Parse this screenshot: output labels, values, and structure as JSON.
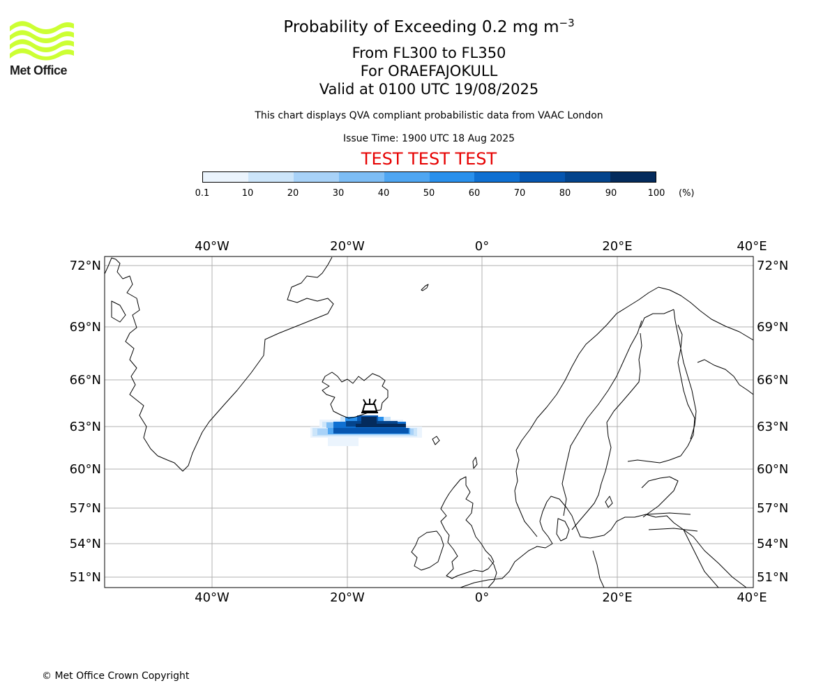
{
  "header": {
    "title_main": "Probability of Exceeding 0.2 mg m",
    "title_exp": "−3",
    "level_range": "From FL300 to FL350",
    "volcano": "For ORAEFAJOKULL",
    "valid_time": "Valid at 0100 UTC 19/08/2025",
    "disclaimer": "This chart displays QVA compliant probabilistic data from VAAC London",
    "issue_time": "Issue Time: 1900 UTC 18 Aug 2025",
    "test_banner": "TEST TEST TEST"
  },
  "logo": {
    "text": "Met Office",
    "color": "#ccff33"
  },
  "colorbar": {
    "ticks": [
      "0.1",
      "10",
      "20",
      "30",
      "40",
      "50",
      "60",
      "70",
      "80",
      "90",
      "100"
    ],
    "unit": "(%)",
    "colors": [
      "#ebf4fd",
      "#cce5fa",
      "#a8d2f8",
      "#7dbdf5",
      "#4fa6f2",
      "#2990ec",
      "#0f70d2",
      "#0656b0",
      "#04448c",
      "#042b5c"
    ]
  },
  "map": {
    "lon_labels": [
      "40°W",
      "20°W",
      "0°",
      "20°E",
      "40°E"
    ],
    "lat_labels": [
      "72°N",
      "69°N",
      "66°N",
      "63°N",
      "60°N",
      "57°N",
      "54°N",
      "51°N"
    ],
    "volcano_symbol": "volcano-icon"
  },
  "footer": {
    "copyright": "© Met Office Crown Copyright"
  }
}
